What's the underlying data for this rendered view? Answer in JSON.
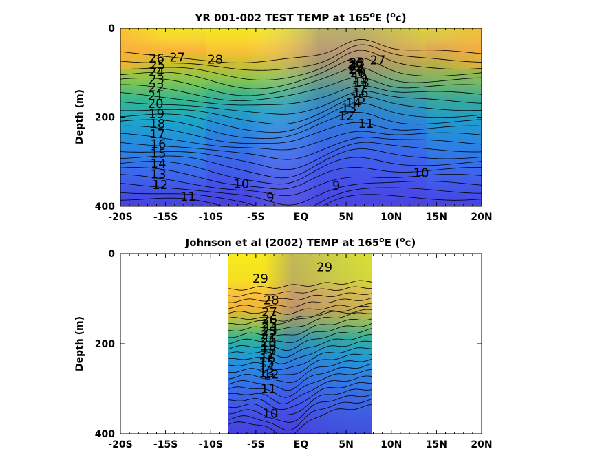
{
  "chart_data": [
    {
      "type": "heatmap",
      "title_main": "YR 001-002 TEST TEMP at 165",
      "title_sup": "o",
      "title_end": "E (",
      "title_unit_sup": "o",
      "title_unit": "c)",
      "ylabel": "Depth (m)",
      "xlim": [
        -20,
        20
      ],
      "ylim": [
        0,
        400
      ],
      "x_ticks": [
        -20,
        -15,
        -10,
        -5,
        0,
        5,
        10,
        15,
        20
      ],
      "x_tick_labels": [
        "-20S",
        "-15S",
        "-10S",
        "-5S",
        "EQ",
        "5N",
        "10N",
        "15N",
        "20N"
      ],
      "y_ticks": [
        0,
        200,
        400
      ],
      "y_tick_labels": [
        "0",
        "200",
        "400"
      ],
      "data_extent_x": [
        -20,
        20
      ],
      "contour_labels": [
        {
          "text": "26",
          "lat": -16.0,
          "depth": 68
        },
        {
          "text": "27",
          "lat": -13.7,
          "depth": 66
        },
        {
          "text": "28",
          "lat": -9.5,
          "depth": 70
        },
        {
          "text": "25",
          "lat": -15.9,
          "depth": 83
        },
        {
          "text": "24",
          "lat": -16.0,
          "depth": 98
        },
        {
          "text": "23",
          "lat": -16.0,
          "depth": 115
        },
        {
          "text": "22",
          "lat": -16.0,
          "depth": 133
        },
        {
          "text": "21",
          "lat": -16.1,
          "depth": 152
        },
        {
          "text": "20",
          "lat": -16.1,
          "depth": 170
        },
        {
          "text": "19",
          "lat": -16.0,
          "depth": 192
        },
        {
          "text": "18",
          "lat": -15.9,
          "depth": 215
        },
        {
          "text": "17",
          "lat": -15.9,
          "depth": 238
        },
        {
          "text": "16",
          "lat": -15.8,
          "depth": 260
        },
        {
          "text": "15",
          "lat": -15.8,
          "depth": 282
        },
        {
          "text": "14",
          "lat": -15.8,
          "depth": 304
        },
        {
          "text": "13",
          "lat": -15.8,
          "depth": 328
        },
        {
          "text": "12",
          "lat": -15.6,
          "depth": 352
        },
        {
          "text": "11",
          "lat": -12.5,
          "depth": 378
        },
        {
          "text": "10",
          "lat": -6.6,
          "depth": 350
        },
        {
          "text": "9",
          "lat": -3.4,
          "depth": 380
        },
        {
          "text": "9",
          "lat": 3.9,
          "depth": 354
        },
        {
          "text": "10",
          "lat": 13.3,
          "depth": 325
        },
        {
          "text": "11",
          "lat": 7.2,
          "depth": 215
        },
        {
          "text": "12",
          "lat": 5.0,
          "depth": 198
        },
        {
          "text": "13",
          "lat": 5.3,
          "depth": 180
        },
        {
          "text": "14",
          "lat": 5.8,
          "depth": 168
        },
        {
          "text": "15",
          "lat": 6.3,
          "depth": 158
        },
        {
          "text": "16",
          "lat": 6.6,
          "depth": 145
        },
        {
          "text": "17",
          "lat": 6.5,
          "depth": 133
        },
        {
          "text": "18",
          "lat": 6.7,
          "depth": 122
        },
        {
          "text": "19",
          "lat": 6.5,
          "depth": 112
        },
        {
          "text": "20",
          "lat": 6.3,
          "depth": 100
        },
        {
          "text": "21",
          "lat": 6.2,
          "depth": 92
        },
        {
          "text": "22",
          "lat": 6.2,
          "depth": 84
        },
        {
          "text": "23",
          "lat": 6.2,
          "depth": 78
        },
        {
          "text": "24",
          "lat": 6.1,
          "depth": 93
        },
        {
          "text": "25",
          "lat": 6.1,
          "depth": 86
        },
        {
          "text": "26",
          "lat": 6.0,
          "depth": 80
        },
        {
          "text": "27",
          "lat": 8.5,
          "depth": 72
        }
      ]
    },
    {
      "type": "heatmap",
      "title_main": "Johnson et al (2002) TEMP at 165",
      "title_sup": "o",
      "title_end": "E (",
      "title_unit_sup": "o",
      "title_unit": "c)",
      "ylabel": "Depth (m)",
      "xlim": [
        -20,
        20
      ],
      "ylim": [
        0,
        400
      ],
      "x_ticks": [
        -20,
        -15,
        -10,
        -5,
        0,
        5,
        10,
        15,
        20
      ],
      "x_tick_labels": [
        "-20S",
        "-15S",
        "-10S",
        "-5S",
        "EQ",
        "5N",
        "10N",
        "15N",
        "20N"
      ],
      "y_ticks": [
        0,
        200,
        400
      ],
      "y_tick_labels": [
        "0",
        "200",
        "400"
      ],
      "data_extent_x": [
        -8,
        8
      ],
      "contour_labels": [
        {
          "text": "29",
          "lat": -4.5,
          "depth": 55
        },
        {
          "text": "29",
          "lat": 2.6,
          "depth": 30
        },
        {
          "text": "28",
          "lat": -3.3,
          "depth": 103
        },
        {
          "text": "27",
          "lat": -3.5,
          "depth": 130
        },
        {
          "text": "26",
          "lat": -3.5,
          "depth": 146
        },
        {
          "text": "25",
          "lat": -3.5,
          "depth": 156
        },
        {
          "text": "24",
          "lat": -3.5,
          "depth": 164
        },
        {
          "text": "23",
          "lat": -3.5,
          "depth": 172
        },
        {
          "text": "22",
          "lat": -3.6,
          "depth": 180
        },
        {
          "text": "21",
          "lat": -3.6,
          "depth": 188
        },
        {
          "text": "20",
          "lat": -3.6,
          "depth": 197
        },
        {
          "text": "19",
          "lat": -3.6,
          "depth": 205
        },
        {
          "text": "18",
          "lat": -3.6,
          "depth": 213
        },
        {
          "text": "17",
          "lat": -3.7,
          "depth": 222
        },
        {
          "text": "16",
          "lat": -3.7,
          "depth": 232
        },
        {
          "text": "15",
          "lat": -3.8,
          "depth": 242
        },
        {
          "text": "14",
          "lat": -3.8,
          "depth": 253
        },
        {
          "text": "13",
          "lat": -3.8,
          "depth": 265
        },
        {
          "text": "12",
          "lat": -3.3,
          "depth": 268
        },
        {
          "text": "11",
          "lat": -3.6,
          "depth": 300
        },
        {
          "text": "10",
          "lat": -3.4,
          "depth": 355
        }
      ]
    }
  ]
}
